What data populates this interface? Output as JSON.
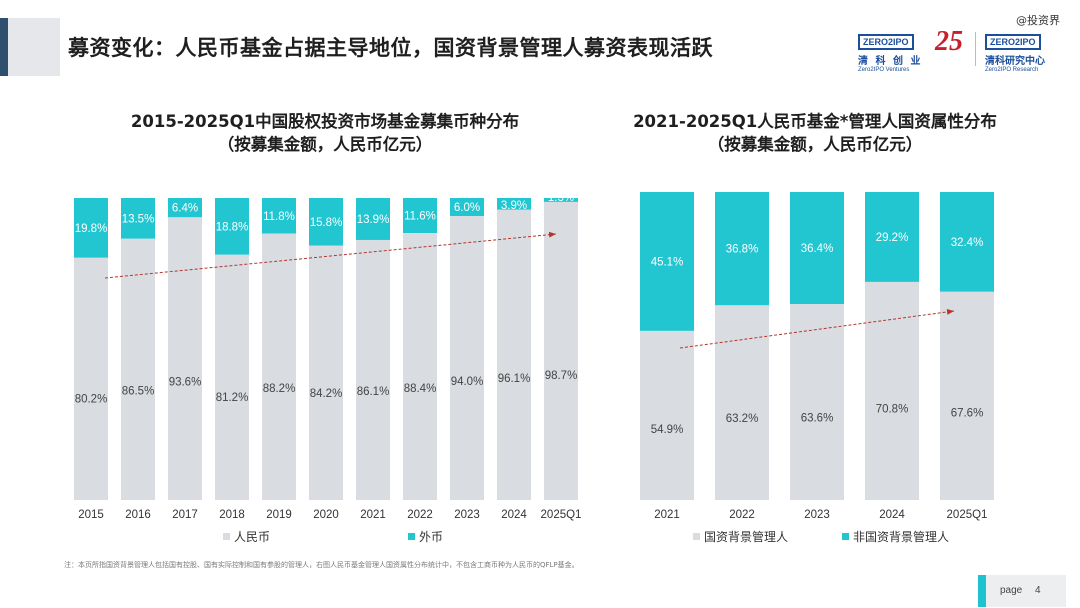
{
  "header": {
    "title": "募资变化：人民币基金占据主导地位，国资背景管理人募资表现活跃",
    "watermark": "@投资界",
    "logo_left": {
      "box": "ZERO2IPO",
      "cn": "清 科 创 业",
      "en": "Zero2IPO Ventures"
    },
    "logo_mid": "25",
    "logo_right": {
      "box": "ZERO2IPO",
      "cn": "清科研究中心",
      "en": "Zero2IPO Research"
    }
  },
  "colors": {
    "rmb": "#d9dce1",
    "foreign": "#22c6d1",
    "arrow": "#b5362b",
    "accent_dark": "#2f4f6f"
  },
  "chart_data": [
    {
      "type": "bar",
      "stacked": true,
      "percent": true,
      "title": "2015-2025Q1中国股权投资市场基金募集币种分布",
      "subtitle": "（按募集金额，人民币亿元）",
      "categories": [
        "2015",
        "2016",
        "2017",
        "2018",
        "2019",
        "2020",
        "2021",
        "2022",
        "2023",
        "2024",
        "2025Q1"
      ],
      "series": [
        {
          "name": "人民币",
          "color": "#d9dce1",
          "values": [
            80.2,
            86.5,
            93.6,
            81.2,
            88.2,
            84.2,
            86.1,
            88.4,
            94.0,
            96.1,
            98.7
          ]
        },
        {
          "name": "外币",
          "color": "#22c6d1",
          "values": [
            19.8,
            13.5,
            6.4,
            18.8,
            11.8,
            15.8,
            13.9,
            11.6,
            6.0,
            3.9,
            1.3
          ]
        }
      ],
      "labels": [
        [
          "80.2%",
          "86.5%",
          "93.6%",
          "81.2%",
          "88.2%",
          "84.2%",
          "86.1%",
          "88.4%",
          "94.0%",
          "96.1%",
          "98.7%"
        ],
        [
          "19.8%",
          "13.5%",
          "6.4%",
          "18.8%",
          "11.8%",
          "15.8%",
          "13.9%",
          "11.6%",
          "6.0%",
          "3.9%",
          "1.3%"
        ]
      ],
      "legend_position": "bottom",
      "trend_arrow": true
    },
    {
      "type": "bar",
      "stacked": true,
      "percent": true,
      "title": "2021-2025Q1人民币基金*管理人国资属性分布",
      "subtitle": "（按募集金额，人民币亿元）",
      "categories": [
        "2021",
        "2022",
        "2023",
        "2024",
        "2025Q1"
      ],
      "series": [
        {
          "name": "国资背景管理人",
          "color": "#d9dce1",
          "values": [
            54.9,
            63.2,
            63.6,
            70.8,
            67.6
          ]
        },
        {
          "name": "非国资背景管理人",
          "color": "#22c6d1",
          "values": [
            45.1,
            36.8,
            36.4,
            29.2,
            32.4
          ]
        }
      ],
      "labels": [
        [
          "54.9%",
          "63.2%",
          "63.6%",
          "70.8%",
          "67.6%"
        ],
        [
          "45.1%",
          "36.8%",
          "36.4%",
          "29.2%",
          "32.4%"
        ]
      ],
      "legend_position": "bottom",
      "trend_arrow": true
    }
  ],
  "footnote": "注：本页所指国资背景管理人包括国有控股、国有实际控制和国有参股的管理人，右图人民币基金管理人国资属性分布统计中，不包含工商币种为人民币的QFLP基金。",
  "page": {
    "label": "page",
    "number": "4"
  }
}
